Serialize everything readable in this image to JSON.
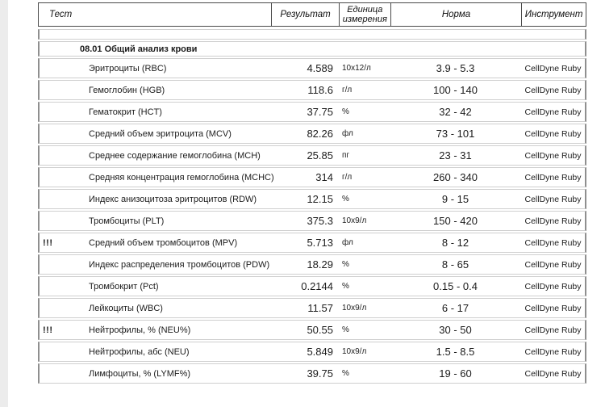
{
  "page": {
    "background": "#ffffff",
    "left_strip_color": "#ececec",
    "row_border_side": "#8f8f8f",
    "row_border_top_bottom": "#cfcfcf",
    "header_border": "#4a4a4a"
  },
  "table": {
    "columns": [
      {
        "key": "test",
        "label": "Тест"
      },
      {
        "key": "result",
        "label": "Результат"
      },
      {
        "key": "unit",
        "label": "Единица измерения"
      },
      {
        "key": "norm",
        "label": "Норма"
      },
      {
        "key": "instrument",
        "label": "Инструмент"
      }
    ],
    "section": {
      "title": "08.01 Общий анализ крови"
    },
    "rows": [
      {
        "flag": "",
        "test": "Эритроциты (RBC)",
        "result": "4.589",
        "unit": "10x12/л",
        "norm": "3.9 - 5.3",
        "instrument": "CellDyne Ruby"
      },
      {
        "flag": "",
        "test": "Гемоглобин (HGB)",
        "result": "118.6",
        "unit": "г/л",
        "norm": "100 - 140",
        "instrument": "CellDyne Ruby"
      },
      {
        "flag": "",
        "test": "Гематокрит (HCT)",
        "result": "37.75",
        "unit": "%",
        "norm": "32 - 42",
        "instrument": "CellDyne Ruby"
      },
      {
        "flag": "",
        "test": "Средний объем эритроцита (MCV)",
        "result": "82.26",
        "unit": "фл",
        "norm": "73 - 101",
        "instrument": "CellDyne Ruby"
      },
      {
        "flag": "",
        "test": "Среднее содержание гемоглобина (MCH)",
        "result": "25.85",
        "unit": "пг",
        "norm": "23 - 31",
        "instrument": "CellDyne Ruby"
      },
      {
        "flag": "",
        "test": "Средняя концентрация гемоглобина (MCHC)",
        "result": "314",
        "unit": "г/л",
        "norm": "260 - 340",
        "instrument": "CellDyne Ruby"
      },
      {
        "flag": "",
        "test": "Индекс анизоцитоза эритроцитов (RDW)",
        "result": "12.15",
        "unit": "%",
        "norm": "9 - 15",
        "instrument": "CellDyne Ruby"
      },
      {
        "flag": "",
        "test": "Тромбоциты (PLT)",
        "result": "375.3",
        "unit": "10x9/л",
        "norm": "150 - 420",
        "instrument": "CellDyne Ruby"
      },
      {
        "flag": "!!!",
        "test": "Средний объем тромбоцитов (MPV)",
        "result": "5.713",
        "unit": "фл",
        "norm": "8 - 12",
        "instrument": "CellDyne Ruby"
      },
      {
        "flag": "",
        "test": "Индекс распределения тромбоцитов (PDW)",
        "result": "18.29",
        "unit": "%",
        "norm": "8 - 65",
        "instrument": "CellDyne Ruby"
      },
      {
        "flag": "",
        "test": "Тромбокрит (Pct)",
        "result": "0.2144",
        "unit": "%",
        "norm": "0.15 - 0.4",
        "instrument": "CellDyne Ruby"
      },
      {
        "flag": "",
        "test": "Лейкоциты (WBC)",
        "result": "11.57",
        "unit": "10x9/л",
        "norm": "6 - 17",
        "instrument": "CellDyne Ruby"
      },
      {
        "flag": "!!!",
        "test": "Нейтрофилы, % (NEU%)",
        "result": "50.55",
        "unit": "%",
        "norm": "30 - 50",
        "instrument": "CellDyne Ruby"
      },
      {
        "flag": "",
        "test": "Нейтрофилы, абс (NEU)",
        "result": "5.849",
        "unit": "10x9/л",
        "norm": "1.5 - 8.5",
        "instrument": "CellDyne Ruby"
      },
      {
        "flag": "",
        "test": "Лимфоциты, % (LYMF%)",
        "result": "39.75",
        "unit": "%",
        "norm": "19 - 60",
        "instrument": "CellDyne Ruby"
      }
    ]
  }
}
